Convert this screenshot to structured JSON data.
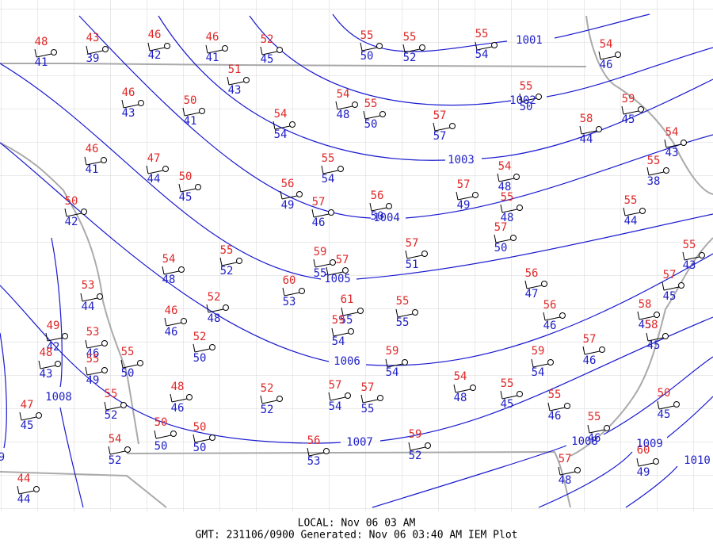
{
  "stations": [
    {
      "temp": 48,
      "dew": 41
    },
    {
      "temp": 43,
      "dew": 39
    },
    {
      "temp": 46,
      "dew": 42
    },
    {
      "temp": 46,
      "dew": 41
    },
    {
      "temp": 52,
      "dew": 45
    },
    {
      "temp": 55,
      "dew": 50
    },
    {
      "temp": 55,
      "dew": 52
    },
    {
      "temp": 55,
      "dew": 54
    },
    {
      "temp": 54,
      "dew": 46
    },
    {
      "temp": 51,
      "dew": 43
    },
    {
      "temp": 46,
      "dew": 43
    },
    {
      "temp": 50,
      "dew": 41
    },
    {
      "temp": 54,
      "dew": 54
    },
    {
      "temp": 54,
      "dew": 48
    },
    {
      "temp": 55,
      "dew": 50
    },
    {
      "temp": 57,
      "dew": 57
    },
    {
      "temp": 55,
      "dew": 50
    },
    {
      "temp": 58,
      "dew": 44
    },
    {
      "temp": 59,
      "dew": 45
    },
    {
      "temp": 54,
      "dew": 43
    },
    {
      "temp": 55,
      "dew": 38
    },
    {
      "temp": 46,
      "dew": 41
    },
    {
      "temp": 47,
      "dew": 44
    },
    {
      "temp": 50,
      "dew": 45
    },
    {
      "temp": 55,
      "dew": 54
    },
    {
      "temp": 56,
      "dew": 49
    },
    {
      "temp": 57,
      "dew": 46
    },
    {
      "temp": 56,
      "dew": 50
    },
    {
      "temp": 57,
      "dew": 49
    },
    {
      "temp": 54,
      "dew": 48
    },
    {
      "temp": 55,
      "dew": 48
    },
    {
      "temp": 57,
      "dew": 50
    },
    {
      "temp": 55,
      "dew": 44
    },
    {
      "temp": 50,
      "dew": 42
    },
    {
      "temp": 55,
      "dew": 52
    },
    {
      "temp": 54,
      "dew": 48
    },
    {
      "temp": 59,
      "dew": 55
    },
    {
      "temp": 57
    },
    {
      "temp": 57,
      "dew": 51
    },
    {
      "temp": 55,
      "dew": 43
    },
    {
      "temp": 60,
      "dew": 53
    },
    {
      "temp": 61,
      "dew": 55
    },
    {
      "temp": 59,
      "dew": 54
    },
    {
      "temp": 55,
      "dew": 55
    },
    {
      "temp": 56,
      "dew": 47
    },
    {
      "temp": 56,
      "dew": 46
    },
    {
      "temp": 57,
      "dew": 45
    },
    {
      "temp": 58,
      "dew": 45
    },
    {
      "temp": 58,
      "dew": 45
    },
    {
      "temp": 53,
      "dew": 44
    },
    {
      "temp": 46,
      "dew": 46
    },
    {
      "temp": 52,
      "dew": 48
    },
    {
      "temp": 49,
      "dew": 42
    },
    {
      "temp": 48,
      "dew": 43
    },
    {
      "temp": 53,
      "dew": 46
    },
    {
      "temp": 55,
      "dew": 49
    },
    {
      "temp": 55,
      "dew": 50
    },
    {
      "temp": 52,
      "dew": 50
    },
    {
      "temp": 57,
      "dew": 46
    },
    {
      "temp": 59,
      "dew": 54
    },
    {
      "temp": 59,
      "dew": 54
    },
    {
      "temp": 54,
      "dew": 48
    },
    {
      "temp": 55,
      "dew": 45
    },
    {
      "temp": 57,
      "dew": 54
    },
    {
      "temp": 57,
      "dew": 55
    },
    {
      "temp": 52,
      "dew": 52
    },
    {
      "temp": 48,
      "dew": 46
    },
    {
      "temp": 55,
      "dew": 52
    },
    {
      "temp": 47,
      "dew": 45
    },
    {
      "temp": 55,
      "dew": 46
    },
    {
      "temp": 50,
      "dew": 45
    },
    {
      "temp": 55,
      "dew": 46
    },
    {
      "temp": 50,
      "dew": 50
    },
    {
      "temp": 50,
      "dew": 50
    },
    {
      "temp": 54,
      "dew": 52
    },
    {
      "temp": 56,
      "dew": 53
    },
    {
      "temp": 59,
      "dew": 52
    },
    {
      "temp": 60,
      "dew": 49
    },
    {
      "temp": 57,
      "dew": 48
    },
    {
      "temp": 44,
      "dew": 44
    }
  ],
  "isobar_labels": [
    "1001",
    "1002",
    "1003",
    "1004",
    "1005",
    "1006",
    "1007",
    "1008",
    "1008",
    "1009",
    "1010",
    "9"
  ],
  "footer": {
    "local": "LOCAL: Nov 06 03 AM",
    "gmt": "GMT: 231106/0900 Generated: Nov 06 03:40 AM IEM Plot"
  }
}
